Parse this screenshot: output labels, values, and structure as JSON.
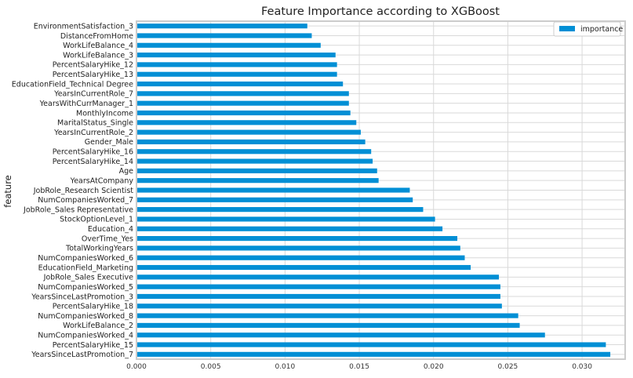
{
  "chart_data": {
    "type": "bar",
    "orientation": "horizontal",
    "title": "Feature Importance according to XGBoost",
    "ylabel": "feature",
    "xlabel": "",
    "xlim": [
      0,
      0.0329
    ],
    "xticks": [
      "0.000",
      "0.005",
      "0.010",
      "0.015",
      "0.020",
      "0.025",
      "0.030"
    ],
    "grid": true,
    "legend_position": "top-right",
    "bar_color": "#008fd5",
    "series": [
      {
        "name": "importance",
        "values": [
          0.0319,
          0.0316,
          0.0275,
          0.0258,
          0.0257,
          0.0246,
          0.0245,
          0.0245,
          0.0244,
          0.0225,
          0.0221,
          0.0218,
          0.0216,
          0.0206,
          0.0201,
          0.0193,
          0.0186,
          0.0184,
          0.0163,
          0.0162,
          0.0159,
          0.0158,
          0.0154,
          0.0151,
          0.0148,
          0.0144,
          0.0143,
          0.0143,
          0.0139,
          0.0135,
          0.0135,
          0.0134,
          0.0124,
          0.0118,
          0.0115
        ]
      }
    ],
    "categories": [
      "YearsSinceLastPromotion_7",
      "PercentSalaryHike_15",
      "NumCompaniesWorked_4",
      "WorkLifeBalance_2",
      "NumCompaniesWorked_8",
      "PercentSalaryHike_18",
      "YearsSinceLastPromotion_3",
      "NumCompaniesWorked_5",
      "JobRole_Sales Executive",
      "EducationField_Marketing",
      "NumCompaniesWorked_6",
      "TotalWorkingYears",
      "OverTime_Yes",
      "Education_4",
      "StockOptionLevel_1",
      "JobRole_Sales Representative",
      "NumCompaniesWorked_7",
      "JobRole_Research Scientist",
      "YearsAtCompany",
      "Age",
      "PercentSalaryHike_14",
      "PercentSalaryHike_16",
      "Gender_Male",
      "YearsInCurrentRole_2",
      "MaritalStatus_Single",
      "MonthlyIncome",
      "YearsWithCurrManager_1",
      "YearsInCurrentRole_7",
      "EducationField_Technical Degree",
      "PercentSalaryHike_13",
      "PercentSalaryHike_12",
      "WorkLifeBalance_3",
      "WorkLifeBalance_4",
      "DistanceFromHome",
      "EnvironmentSatisfaction_3"
    ]
  }
}
